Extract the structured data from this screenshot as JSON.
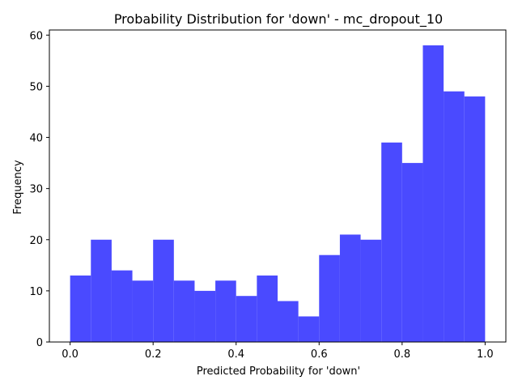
{
  "chart_data": {
    "type": "bar",
    "title": "Probability Distribution for 'down' - mc_dropout_10",
    "xlabel": "Predicted Probability for 'down'",
    "ylabel": "Frequency",
    "xlim": [
      -0.05,
      1.05
    ],
    "ylim": [
      0,
      61
    ],
    "x_ticks": [
      0.0,
      0.2,
      0.4,
      0.6,
      0.8,
      1.0
    ],
    "x_tick_labels": [
      "0.0",
      "0.2",
      "0.4",
      "0.6",
      "0.8",
      "1.0"
    ],
    "y_ticks": [
      0,
      10,
      20,
      30,
      40,
      50,
      60
    ],
    "y_tick_labels": [
      "0",
      "10",
      "20",
      "30",
      "40",
      "50",
      "60"
    ],
    "bin_edges": [
      0.0,
      0.05,
      0.1,
      0.15,
      0.2,
      0.25,
      0.3,
      0.35,
      0.4,
      0.45,
      0.5,
      0.55,
      0.6,
      0.65,
      0.7,
      0.75,
      0.8,
      0.85,
      0.9,
      0.95,
      1.0
    ],
    "values": [
      13,
      20,
      14,
      12,
      20,
      12,
      10,
      12,
      9,
      13,
      8,
      5,
      17,
      21,
      20,
      39,
      35,
      58,
      49,
      48
    ],
    "bar_color": "#4a4aff",
    "grid": false,
    "legend": "none"
  }
}
